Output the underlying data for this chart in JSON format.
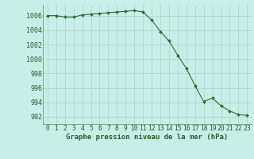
{
  "x": [
    0,
    1,
    2,
    3,
    4,
    5,
    6,
    7,
    8,
    9,
    10,
    11,
    12,
    13,
    14,
    15,
    16,
    17,
    18,
    19,
    20,
    21,
    22,
    23
  ],
  "y": [
    1006.0,
    1006.0,
    1005.8,
    1005.8,
    1006.1,
    1006.2,
    1006.3,
    1006.4,
    1006.5,
    1006.6,
    1006.7,
    1006.5,
    1005.4,
    1003.8,
    1002.5,
    1000.5,
    998.7,
    996.3,
    994.1,
    994.6,
    993.5,
    992.8,
    992.3,
    992.2
  ],
  "line_color": "#2d6a2d",
  "marker_color": "#2d6a2d",
  "bg_color": "#c8eee8",
  "grid_color": "#a8d4cc",
  "text_color": "#2d5a2d",
  "xlabel": "Graphe pression niveau de la mer (hPa)",
  "ylim": [
    991.0,
    1007.5
  ],
  "yticks": [
    992,
    994,
    996,
    998,
    1000,
    1002,
    1004,
    1006
  ],
  "xticks": [
    0,
    1,
    2,
    3,
    4,
    5,
    6,
    7,
    8,
    9,
    10,
    11,
    12,
    13,
    14,
    15,
    16,
    17,
    18,
    19,
    20,
    21,
    22,
    23
  ],
  "xlabel_fontsize": 6.5,
  "tick_fontsize": 5.8,
  "ytick_fontsize": 6.0
}
